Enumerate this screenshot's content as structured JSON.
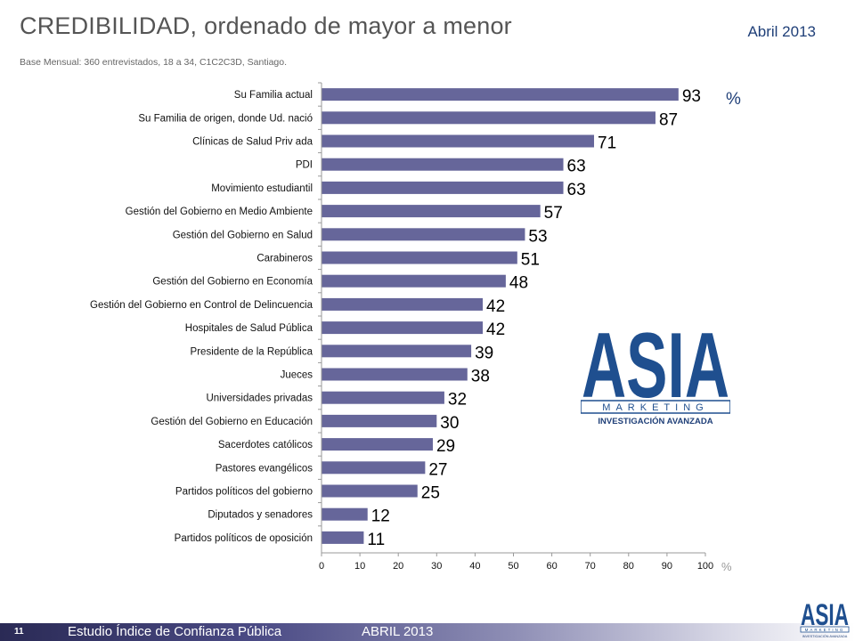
{
  "header": {
    "title": "CREDIBILIDAD,",
    "subtitle": "ordenado de mayor a menor",
    "date": "Abril 2013",
    "base_note": "Base Mensual: 360 entrevistados, 18 a 34, C1C2C3D, Santiago."
  },
  "chart_data": {
    "type": "bar",
    "orientation": "horizontal",
    "categories": [
      "Su Familia actual",
      "Su Familia de origen, donde Ud. nació",
      "Clínicas de Salud Priv ada",
      "PDI",
      "Movimiento estudiantil",
      "Gestión del Gobierno en Medio Ambiente",
      "Gestión del Gobierno en Salud",
      "Carabineros",
      "Gestión del Gobierno en Economía",
      "Gestión del Gobierno en Control de Delincuencia",
      "Hospitales de Salud Pública",
      "Presidente de la República",
      "Jueces",
      "Universidades privadas",
      "Gestión del Gobierno en Educación",
      "Sacerdotes católicos",
      "Pastores evangélicos",
      "Partidos políticos del gobierno",
      "Diputados y senadores",
      "Partidos políticos de oposición"
    ],
    "values": [
      93,
      87,
      71,
      63,
      63,
      57,
      53,
      51,
      48,
      42,
      42,
      39,
      38,
      32,
      30,
      29,
      27,
      25,
      12,
      11
    ],
    "xlim": [
      0,
      100
    ],
    "xticks": [
      0,
      10,
      20,
      30,
      40,
      50,
      60,
      70,
      80,
      90,
      100
    ],
    "unit_label": "%",
    "axis_unit_label": "%",
    "bar_color": "#66669a",
    "grid": false
  },
  "logo": {
    "text": "ASIA",
    "band": "MARKETING",
    "tagline": "INVESTIGACIÓN AVANZADA",
    "color": "#1f4f8f"
  },
  "footer": {
    "page": "11",
    "study": "Estudio  Índice de Confianza Pública",
    "date": "ABRIL 2013"
  }
}
